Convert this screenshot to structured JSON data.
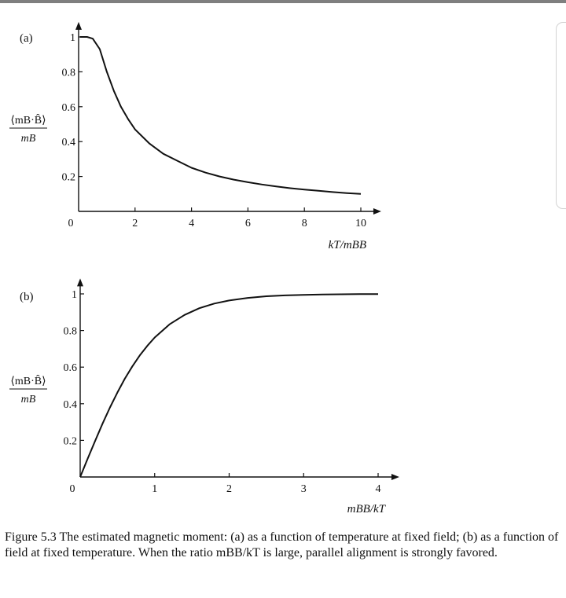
{
  "chart_data": [
    {
      "panel_label": "(a)",
      "type": "line",
      "title": "",
      "xlabel": "kT/mBB",
      "ylabel_numerator": "⟨mB·B̂⟩",
      "ylabel_denominator": "mB",
      "xlim": [
        0,
        10.5
      ],
      "ylim": [
        0,
        1.05
      ],
      "xticks": [
        0,
        2,
        4,
        6,
        8,
        10
      ],
      "xtick_labels": [
        "0",
        "2",
        "4",
        "6",
        "8",
        "10"
      ],
      "yticks": [
        0.2,
        0.4,
        0.6,
        0.8,
        1
      ],
      "ytick_labels": [
        "0.2",
        "0.4",
        "0.6",
        "0.8",
        "1"
      ],
      "grid": false,
      "series": [
        {
          "name": "estimated magnetic moment vs temperature",
          "x": [
            0.05,
            0.3,
            0.5,
            0.75,
            1,
            1.25,
            1.5,
            1.75,
            2,
            2.5,
            3,
            3.5,
            4,
            4.5,
            5,
            5.5,
            6,
            6.5,
            7,
            7.5,
            8,
            8.5,
            9,
            9.5,
            10
          ],
          "y": [
            1.0,
            1.0,
            0.99,
            0.93,
            0.8,
            0.69,
            0.6,
            0.53,
            0.47,
            0.39,
            0.33,
            0.29,
            0.25,
            0.222,
            0.2,
            0.182,
            0.167,
            0.154,
            0.143,
            0.133,
            0.125,
            0.118,
            0.111,
            0.105,
            0.1
          ]
        }
      ]
    },
    {
      "panel_label": "(b)",
      "type": "line",
      "title": "",
      "xlabel": "mBB/kT",
      "ylabel_numerator": "⟨mB·B̂⟩",
      "ylabel_denominator": "mB",
      "xlim": [
        0,
        4.2
      ],
      "ylim": [
        0,
        1.05
      ],
      "xticks": [
        0,
        1,
        2,
        3,
        4
      ],
      "xtick_labels": [
        "0",
        "1",
        "2",
        "3",
        "4"
      ],
      "yticks": [
        0.2,
        0.4,
        0.6,
        0.8,
        1
      ],
      "ytick_labels": [
        "0.2",
        "0.4",
        "0.6",
        "0.8",
        "1"
      ],
      "grid": false,
      "series": [
        {
          "name": "estimated magnetic moment vs field",
          "x": [
            0,
            0.1,
            0.2,
            0.3,
            0.4,
            0.5,
            0.6,
            0.7,
            0.8,
            0.9,
            1.0,
            1.2,
            1.4,
            1.6,
            1.8,
            2.0,
            2.25,
            2.5,
            2.75,
            3.0,
            3.25,
            3.5,
            3.75,
            4.0
          ],
          "y": [
            0,
            0.1,
            0.197,
            0.291,
            0.38,
            0.462,
            0.537,
            0.604,
            0.664,
            0.716,
            0.762,
            0.834,
            0.885,
            0.922,
            0.947,
            0.964,
            0.978,
            0.987,
            0.992,
            0.995,
            0.997,
            0.998,
            0.999,
            0.999
          ]
        }
      ]
    }
  ],
  "caption": "Figure 5.3 The estimated magnetic moment: (a) as a function of temperature at fixed field; (b) as a function of field at fixed temperature. When the ratio mBB/kT is large, parallel alignment is strongly favored.",
  "colors": {
    "curve": "#111111",
    "axis": "#111111",
    "background": "#ffffff",
    "topbar": "#7f7f7f"
  }
}
